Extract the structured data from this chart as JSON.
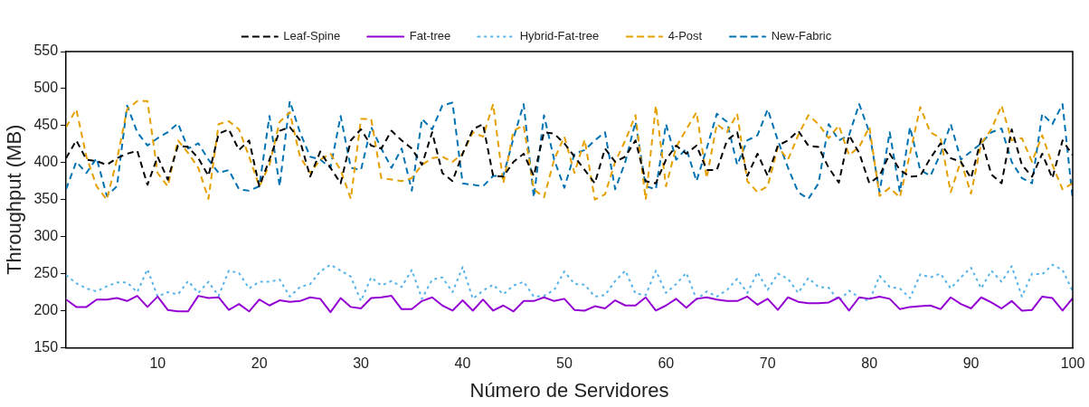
{
  "chart_data": {
    "type": "line",
    "xlabel": "Número de Servidores",
    "ylabel": "Throughput (MB)",
    "x": [
      1,
      2,
      3,
      4,
      5,
      6,
      7,
      8,
      9,
      10,
      11,
      12,
      13,
      14,
      15,
      16,
      17,
      18,
      19,
      20,
      21,
      22,
      23,
      24,
      25,
      26,
      27,
      28,
      29,
      30,
      31,
      32,
      33,
      34,
      35,
      36,
      37,
      38,
      39,
      40,
      41,
      42,
      43,
      44,
      45,
      46,
      47,
      48,
      49,
      50,
      51,
      52,
      53,
      54,
      55,
      56,
      57,
      58,
      59,
      60,
      61,
      62,
      63,
      64,
      65,
      66,
      67,
      68,
      69,
      70,
      71,
      72,
      73,
      74,
      75,
      76,
      77,
      78,
      79,
      80,
      81,
      82,
      83,
      84,
      85,
      86,
      87,
      88,
      89,
      90,
      91,
      92,
      93,
      94,
      95,
      96,
      97,
      98,
      99,
      100
    ],
    "xlim": [
      1,
      100
    ],
    "xticks": [
      10,
      20,
      30,
      40,
      50,
      60,
      70,
      80,
      90,
      100
    ],
    "ylim": [
      150,
      550
    ],
    "yticks": [
      150,
      200,
      250,
      300,
      350,
      400,
      450,
      500,
      550
    ],
    "grid": false,
    "legend": "top",
    "marker": "none",
    "series": [
      {
        "name": "Leaf-Spine",
        "color": "#000000",
        "line_style": "dashed",
        "values": [
          406,
          430,
          404,
          402,
          397,
          406,
          412,
          416,
          370,
          408,
          377,
          423,
          421,
          406,
          382,
          439,
          445,
          417,
          430,
          368,
          404,
          443,
          448,
          430,
          381,
          415,
          393,
          372,
          430,
          445,
          423,
          419,
          443,
          430,
          419,
          397,
          441,
          386,
          375,
          412,
          445,
          452,
          382,
          381,
          401,
          412,
          382,
          441,
          439,
          426,
          408,
          390,
          372,
          419,
          401,
          408,
          430,
          375,
          372,
          404,
          423,
          412,
          423,
          390,
          390,
          430,
          441,
          382,
          412,
          382,
          423,
          430,
          443,
          423,
          421,
          393,
          373,
          437,
          413,
          372,
          382,
          412,
          390,
          381,
          382,
          406,
          426,
          406,
          401,
          379,
          432,
          384,
          372,
          445,
          397,
          381,
          412,
          379,
          430,
          410
        ]
      },
      {
        "name": "Fat-tree",
        "color": "#9400d3",
        "line_style": "solid",
        "values": [
          215,
          205,
          205,
          215,
          215,
          217,
          213,
          220,
          205,
          219,
          201,
          199,
          199,
          220,
          217,
          218,
          201,
          209,
          199,
          215,
          207,
          214,
          212,
          213,
          218,
          216,
          198,
          217,
          205,
          203,
          217,
          218,
          220,
          202,
          202,
          213,
          218,
          207,
          200,
          214,
          200,
          215,
          200,
          207,
          199,
          213,
          213,
          218,
          213,
          216,
          201,
          200,
          206,
          203,
          214,
          207,
          207,
          218,
          200,
          207,
          216,
          204,
          216,
          218,
          215,
          213,
          213,
          219,
          208,
          216,
          201,
          218,
          212,
          210,
          210,
          211,
          218,
          200,
          218,
          216,
          219,
          216,
          202,
          205,
          206,
          207,
          202,
          218,
          209,
          203,
          218,
          211,
          203,
          213,
          200,
          201,
          219,
          217,
          200,
          217
        ]
      },
      {
        "name": "Hybrid-Fat-tree",
        "color": "#56b4e9",
        "line_style": "dotted",
        "values": [
          248,
          237,
          230,
          226,
          233,
          238,
          238,
          225,
          256,
          219,
          225,
          222,
          240,
          224,
          239,
          220,
          254,
          251,
          230,
          239,
          239,
          242,
          219,
          232,
          236,
          253,
          262,
          254,
          246,
          213,
          245,
          234,
          240,
          232,
          255,
          216,
          242,
          245,
          225,
          259,
          216,
          227,
          235,
          222,
          234,
          239,
          219,
          220,
          228,
          253,
          236,
          235,
          219,
          221,
          240,
          254,
          223,
          221,
          254,
          224,
          236,
          251,
          215,
          226,
          219,
          228,
          243,
          224,
          252,
          228,
          250,
          243,
          224,
          244,
          232,
          231,
          213,
          227,
          218,
          213,
          247,
          232,
          230,
          217,
          249,
          245,
          250,
          230,
          245,
          258,
          230,
          254,
          239,
          260,
          219,
          250,
          249,
          262,
          255,
          226
        ]
      },
      {
        "name": "4-Post",
        "color": "#e69f00",
        "line_style": "dashed",
        "values": [
          448,
          472,
          408,
          368,
          350,
          404,
          472,
          483,
          483,
          386,
          368,
          430,
          413,
          393,
          351,
          452,
          456,
          445,
          408,
          368,
          397,
          455,
          468,
          408,
          386,
          404,
          412,
          390,
          351,
          459,
          459,
          379,
          377,
          375,
          379,
          397,
          406,
          408,
          401,
          412,
          441,
          435,
          479,
          372,
          443,
          450,
          364,
          353,
          404,
          435,
          386,
          431,
          350,
          357,
          401,
          430,
          464,
          350,
          477,
          368,
          421,
          445,
          468,
          379,
          452,
          441,
          466,
          375,
          360,
          368,
          421,
          404,
          437,
          464,
          452,
          433,
          450,
          410,
          421,
          448,
          355,
          366,
          353,
          412,
          475,
          441,
          433,
          360,
          402,
          358,
          426,
          445,
          477,
          430,
          433,
          401,
          437,
          397,
          364,
          372
        ]
      },
      {
        "name": "New-Fabric",
        "color": "#0072b2",
        "line_style": "dashed",
        "values": [
          364,
          401,
          386,
          406,
          355,
          368,
          477,
          441,
          423,
          433,
          441,
          453,
          419,
          426,
          404,
          386,
          390,
          364,
          362,
          368,
          463,
          368,
          483,
          441,
          408,
          404,
          393,
          463,
          393,
          390,
          448,
          419,
          393,
          419,
          362,
          459,
          445,
          477,
          481,
          372,
          370,
          368,
          382,
          382,
          433,
          479,
          353,
          464,
          404,
          366,
          412,
          417,
          430,
          441,
          364,
          401,
          455,
          368,
          364,
          452,
          404,
          419,
          375,
          419,
          466,
          455,
          397,
          430,
          437,
          472,
          430,
          393,
          360,
          351,
          372,
          452,
          430,
          437,
          479,
          441,
          360,
          441,
          360,
          448,
          390,
          382,
          412,
          452,
          404,
          415,
          426,
          441,
          446,
          401,
          379,
          372,
          466,
          452,
          479,
          350
        ]
      }
    ]
  }
}
